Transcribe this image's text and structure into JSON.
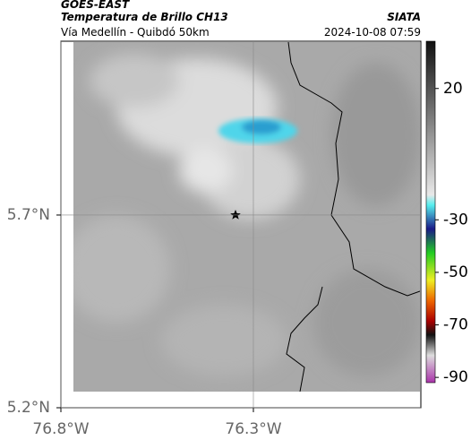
{
  "header": {
    "satellite": "GOES-EAST",
    "product": "Temperatura de Brillo CH13",
    "source": "SIATA",
    "subtitle": "Vía Medellín - Quibdó 50km",
    "datetime": "2024-10-08 07:59"
  },
  "map": {
    "xlim": [
      -76.8,
      -75.865
    ],
    "ylim": [
      5.2,
      6.151
    ],
    "xticks": [
      {
        "value": -76.8,
        "label": "76.8°W"
      },
      {
        "value": -76.3,
        "label": "76.3°W"
      }
    ],
    "yticks": [
      {
        "value": 5.2,
        "label": "5.2°N"
      },
      {
        "value": 5.7,
        "label": "5.7°N"
      }
    ]
  },
  "colorbar": {
    "lim": [
      38,
      -92
    ],
    "ticks": [
      20,
      -30,
      -50,
      -70,
      -90
    ]
  }
}
